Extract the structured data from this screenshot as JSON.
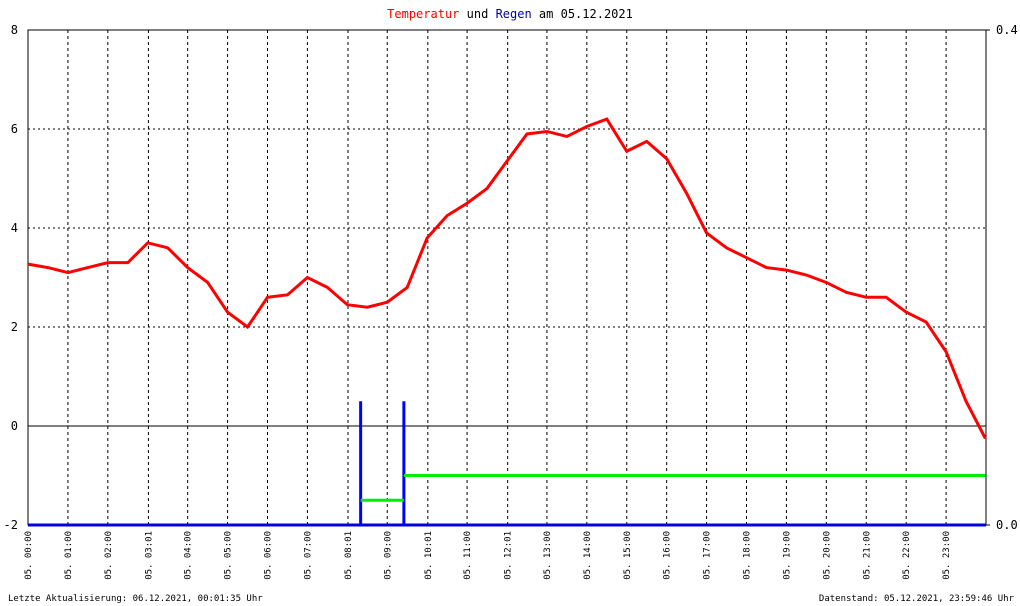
{
  "chart_data": {
    "type": "line",
    "title": [
      "und",
      "am 05.12.2021"
    ],
    "footer_left": "Letzte Aktualisierung: 06.12.2021, 00:01:35 Uhr",
    "footer_right": "Datenstand: 05.12.2021, 23:59:46 Uhr",
    "ylim": [
      -2,
      8
    ],
    "yticks": [
      -2,
      0,
      2,
      4,
      6,
      8
    ],
    "y2lim": [
      0,
      0.4
    ],
    "y2ticks": [
      {
        "value": 0,
        "label": "0.0"
      },
      {
        "value": 0.4,
        "label": "0.4"
      }
    ],
    "xlim": [
      "05. 00:00",
      "05. 24:00"
    ],
    "xticks": [
      "05. 00:00",
      "05. 01:00",
      "05. 02:00",
      "05. 03:01",
      "05. 04:00",
      "05. 05:00",
      "05. 06:00",
      "05. 07:00",
      "05. 08:01",
      "05. 09:00",
      "05. 10:01",
      "05. 11:00",
      "05. 12:01",
      "05. 13:00",
      "05. 14:00",
      "05. 15:00",
      "05. 16:00",
      "05. 17:00",
      "05. 18:00",
      "05. 19:00",
      "05. 20:00",
      "05. 21:00",
      "05. 22:00",
      "05. 23:00"
    ],
    "grid": true,
    "series": [
      {
        "name": "Temperatur",
        "color": "#ff0000",
        "kind": "line",
        "x": [
          "05. 00:00",
          "05. 00:30",
          "05. 01:00",
          "05. 01:30",
          "05. 02:00",
          "05. 02:30",
          "05. 03:00",
          "05. 03:30",
          "05. 04:00",
          "05. 04:30",
          "05. 05:00",
          "05. 05:30",
          "05. 06:00",
          "05. 06:30",
          "05. 07:00",
          "05. 07:30",
          "05. 08:00",
          "05. 08:30",
          "05. 09:00",
          "05. 09:30",
          "05. 10:00",
          "05. 10:30",
          "05. 11:00",
          "05. 11:30",
          "05. 12:00",
          "05. 12:30",
          "05. 13:00",
          "05. 13:30",
          "05. 14:00",
          "05. 14:30",
          "05. 15:00",
          "05. 15:30",
          "05. 16:00",
          "05. 16:30",
          "05. 17:00",
          "05. 17:30",
          "05. 18:00",
          "05. 18:30",
          "05. 19:00",
          "05. 19:30",
          "05. 20:00",
          "05. 20:30",
          "05. 21:00",
          "05. 21:30",
          "05. 22:00",
          "05. 22:30",
          "05. 23:00",
          "05. 23:30",
          "05. 23:59"
        ],
        "values": [
          3.27,
          3.2,
          3.1,
          3.2,
          3.3,
          3.3,
          3.7,
          3.6,
          3.2,
          2.9,
          2.3,
          2.0,
          2.6,
          2.65,
          3.0,
          2.8,
          2.45,
          2.4,
          2.5,
          2.8,
          3.8,
          4.25,
          4.5,
          4.8,
          5.35,
          5.9,
          5.95,
          5.85,
          6.05,
          6.2,
          5.55,
          5.75,
          5.4,
          4.7,
          3.9,
          3.6,
          3.4,
          3.2,
          3.15,
          3.05,
          2.9,
          2.7,
          2.6,
          2.6,
          2.3,
          2.1,
          1.5,
          0.5,
          -0.25
        ]
      },
      {
        "name": "Regen",
        "color": "#0000ff",
        "kind": "bar",
        "axis": "y2",
        "x": [
          "05. 08:20",
          "05. 09:25"
        ],
        "values": [
          0.1,
          0.1
        ]
      },
      {
        "color": "#00ee00",
        "kind": "step",
        "axis": "y2",
        "x": [
          "05. 08:20",
          "05. 09:25",
          "05. 23:59"
        ],
        "values": [
          0.02,
          0.04,
          0.04
        ]
      }
    ]
  }
}
